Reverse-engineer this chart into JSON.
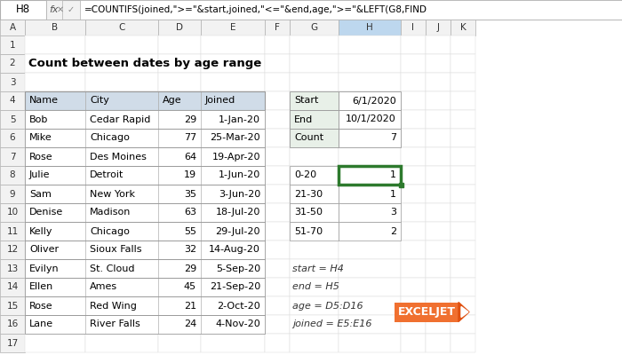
{
  "title": "Count between dates by age range",
  "formula_bar_cell": "H8",
  "formula_bar_text": "=COUNTIFS(joined,\">=\"&start,joined,\"<=\"&end,age,\">=\"&LEFT(G8,FIND",
  "col_headers": [
    "A",
    "B",
    "C",
    "D",
    "E",
    "F",
    "G",
    "H",
    "I",
    "J",
    "K"
  ],
  "row_headers": [
    "1",
    "2",
    "3",
    "4",
    "5",
    "6",
    "7",
    "8",
    "9",
    "10",
    "11",
    "12",
    "13",
    "14",
    "15",
    "16",
    "17"
  ],
  "main_table_headers": [
    "Name",
    "City",
    "Age",
    "Joined"
  ],
  "main_table_data": [
    [
      "Bob",
      "Cedar Rapid",
      "29",
      "1-Jan-20"
    ],
    [
      "Mike",
      "Chicago",
      "77",
      "25-Mar-20"
    ],
    [
      "Rose",
      "Des Moines",
      "64",
      "19-Apr-20"
    ],
    [
      "Julie",
      "Detroit",
      "19",
      "1-Jun-20"
    ],
    [
      "Sam",
      "New York",
      "35",
      "3-Jun-20"
    ],
    [
      "Denise",
      "Madison",
      "63",
      "18-Jul-20"
    ],
    [
      "Kelly",
      "Chicago",
      "55",
      "29-Jul-20"
    ],
    [
      "Oliver",
      "Sioux Falls",
      "32",
      "14-Aug-20"
    ],
    [
      "Evilyn",
      "St. Cloud",
      "29",
      "5-Sep-20"
    ],
    [
      "Ellen",
      "Ames",
      "45",
      "21-Sep-20"
    ],
    [
      "Rose",
      "Red Wing",
      "21",
      "2-Oct-20"
    ],
    [
      "Lane",
      "River Falls",
      "24",
      "4-Nov-20"
    ]
  ],
  "side_table_data": [
    [
      "Start",
      "6/1/2020"
    ],
    [
      "End",
      "10/1/2020"
    ],
    [
      "Count",
      "7"
    ]
  ],
  "age_range_data": [
    [
      "0-20",
      "1"
    ],
    [
      "21-30",
      "1"
    ],
    [
      "31-50",
      "3"
    ],
    [
      "51-70",
      "2"
    ]
  ],
  "notes": [
    "start = H4",
    "end = H5",
    "age = D5:D16",
    "joined = E5:E16"
  ],
  "bg_color": "#ffffff",
  "header_bg": "#e8f0e8",
  "table_header_bg": "#d0dce8",
  "selected_cell_border": "#2d7a2d",
  "grid_color": "#c0c0c0",
  "formula_bar_bg": "#f2f2f2",
  "col_header_bg": "#f2f2f2",
  "row_header_bg": "#f2f2f2",
  "selected_col_header_bg": "#bdd7ee",
  "title_fontsize": 9.5,
  "cell_fontsize": 8,
  "header_fontsize": 8
}
